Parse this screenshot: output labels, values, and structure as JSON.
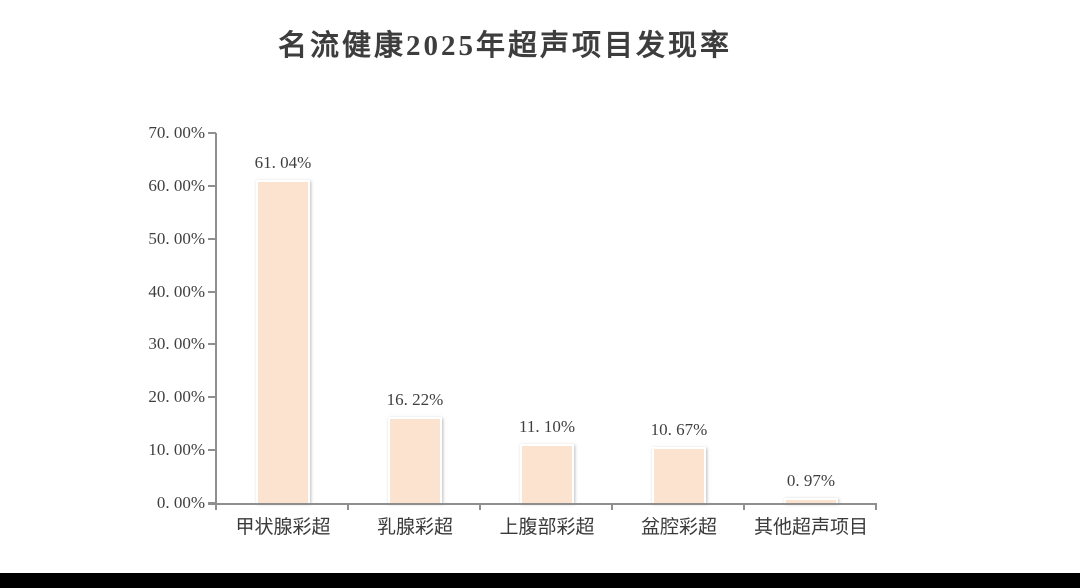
{
  "page": {
    "background": "#ffffff",
    "bottom_strip_color": "#000000"
  },
  "chart_data": {
    "type": "bar",
    "title": "名流健康2025年超声项目发现率",
    "categories": [
      "甲状腺彩超",
      "乳腺彩超",
      "上腹部彩超",
      "盆腔彩超",
      "其他超声项目"
    ],
    "values": [
      61.04,
      16.22,
      11.1,
      10.67,
      0.97
    ],
    "data_labels": [
      "61. 04%",
      "16. 22%",
      "11. 10%",
      "10. 67%",
      "0. 97%"
    ],
    "y_ticks": [
      "0. 00%",
      "10. 00%",
      "20. 00%",
      "30. 00%",
      "40. 00%",
      "50. 00%",
      "60. 00%",
      "70. 00%"
    ],
    "ylim": [
      0,
      70
    ],
    "xlabel": "",
    "ylabel": "",
    "grid": false,
    "legend": false,
    "bar_fill": "#fce3d0",
    "bar_border": "#ffffff",
    "axis_color": "#8f8f8f",
    "text_color": "#3f3f3f"
  }
}
